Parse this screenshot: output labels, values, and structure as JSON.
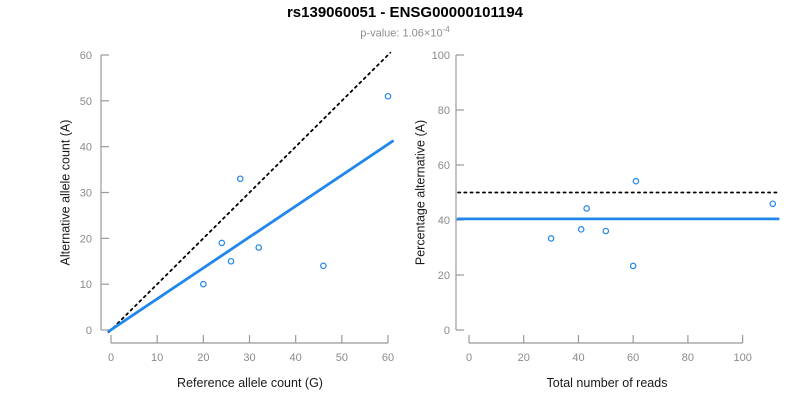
{
  "figure": {
    "title": "rs139060051 - ENSG00000101194",
    "subtitle_base": "p-value: 1.06×10",
    "subtitle_exponent": "-4",
    "colors": {
      "accent_blue": "#2287ec",
      "line_black": "#000000",
      "axis_gray": "#999999",
      "tick_label_gray": "#8a8a8a"
    }
  },
  "chart_data": [
    {
      "type": "scatter",
      "name": "allele-count-scatter",
      "xlabel": "Reference allele count (G)",
      "ylabel": "Alternative allele count (A)",
      "xlim": [
        0,
        60
      ],
      "ylim": [
        0,
        60
      ],
      "xticks": [
        0,
        10,
        20,
        30,
        40,
        50,
        60
      ],
      "yticks": [
        0,
        10,
        20,
        30,
        40,
        50,
        60
      ],
      "grid": false,
      "points": [
        [
          20,
          10
        ],
        [
          24,
          19
        ],
        [
          26,
          15
        ],
        [
          28,
          33
        ],
        [
          32,
          18
        ],
        [
          46,
          14
        ],
        [
          60,
          51
        ]
      ],
      "lines": [
        {
          "name": "identity-line",
          "style": "dotted",
          "color": "#000000",
          "from": [
            -0.5,
            -0.5
          ],
          "to": [
            60.5,
            60.5
          ]
        },
        {
          "name": "fit-line",
          "style": "solid",
          "color": "#2287ec",
          "from": [
            -0.5,
            -0.3
          ],
          "to": [
            61,
            41.2
          ]
        }
      ]
    },
    {
      "type": "scatter",
      "name": "percentage-vs-reads-scatter",
      "xlabel": "Total number of reads",
      "ylabel": "Percentage alternative (A)",
      "xlim": [
        0,
        110
      ],
      "ylim": [
        0,
        100
      ],
      "xticks": [
        0,
        20,
        40,
        60,
        80,
        100
      ],
      "yticks": [
        0,
        20,
        40,
        60,
        80,
        100
      ],
      "grid": false,
      "points": [
        [
          30,
          33.3
        ],
        [
          41,
          36.6
        ],
        [
          43,
          44.2
        ],
        [
          50,
          36
        ],
        [
          60,
          23.3
        ],
        [
          61,
          54.1
        ],
        [
          111,
          45.9
        ]
      ],
      "lines": [
        {
          "name": "expected-50pct-line",
          "style": "dotted",
          "color": "#000000",
          "from": [
            -4,
            50
          ],
          "to": [
            113,
            50
          ]
        },
        {
          "name": "observed-mean-line",
          "style": "solid",
          "color": "#2287ec",
          "from": [
            -4,
            40.4
          ],
          "to": [
            113,
            40.4
          ]
        }
      ]
    }
  ]
}
